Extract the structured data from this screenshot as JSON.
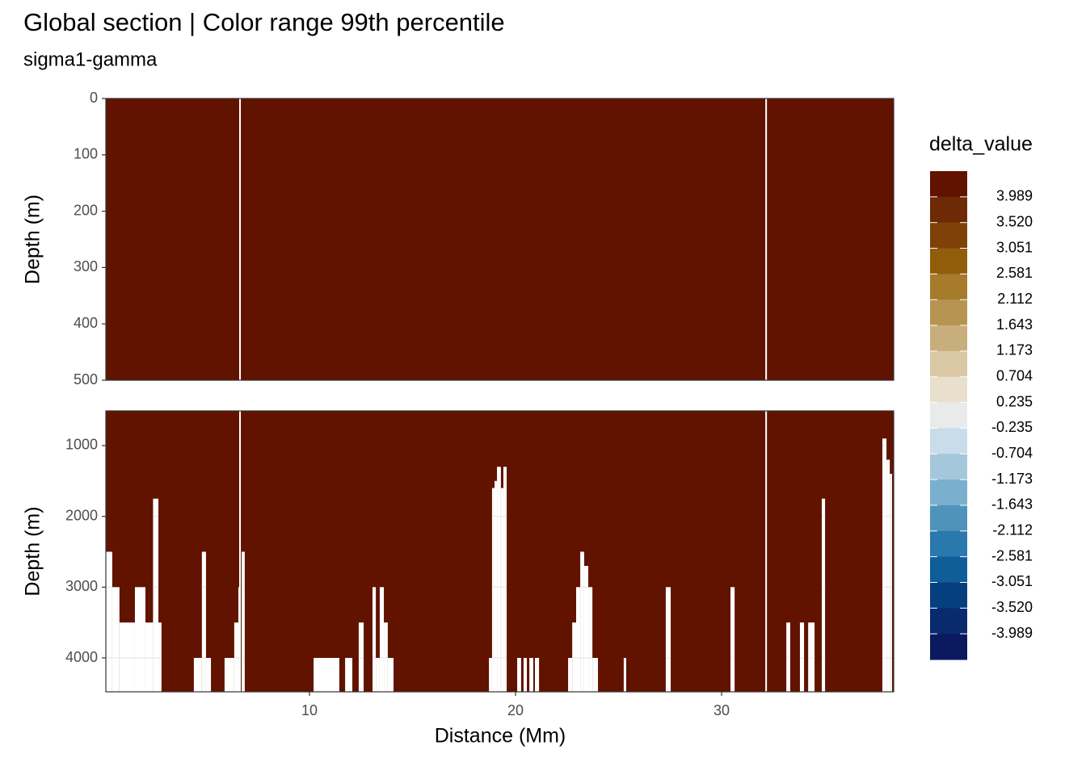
{
  "chart_data": {
    "type": "section",
    "title": "Global section | Color range 99th percentile",
    "subtitle": "sigma1-gamma",
    "x_label": "Distance (Mm)",
    "xlim": [
      0.12,
      38.35
    ],
    "xticks": [
      10,
      20,
      30
    ],
    "fill_color": "#611300",
    "grid": true,
    "missing_x": [
      [
        6.59,
        6.67
      ],
      [
        32.12,
        32.2
      ]
    ],
    "panels": [
      {
        "y_label": "Depth (m)",
        "ylim": [
          0,
          500
        ],
        "yticks": [
          0,
          100,
          200,
          300,
          400,
          500
        ],
        "bottom": []
      },
      {
        "y_label": "Depth (m)",
        "ylim": [
          510,
          4479
        ],
        "yticks": [
          1000,
          2000,
          3000,
          4000
        ],
        "bottom": [
          [
            0.12,
            0.43,
            2500
          ],
          [
            0.43,
            0.78,
            3000
          ],
          [
            0.78,
            1.53,
            3500
          ],
          [
            1.53,
            2.04,
            3000
          ],
          [
            2.04,
            2.41,
            3500
          ],
          [
            2.41,
            2.67,
            1750
          ],
          [
            2.67,
            2.82,
            3500
          ],
          [
            4.39,
            4.78,
            4000
          ],
          [
            4.78,
            4.98,
            2500
          ],
          [
            4.98,
            5.22,
            4000
          ],
          [
            5.88,
            6.35,
            4000
          ],
          [
            6.35,
            6.55,
            3500
          ],
          [
            6.55,
            6.63,
            3000
          ],
          [
            6.71,
            6.86,
            2500
          ],
          [
            10.2,
            11.45,
            4000
          ],
          [
            11.73,
            12.08,
            4000
          ],
          [
            12.39,
            12.63,
            3500
          ],
          [
            13.06,
            13.22,
            3000
          ],
          [
            13.22,
            13.41,
            4000
          ],
          [
            13.41,
            13.61,
            3000
          ],
          [
            13.61,
            13.8,
            3500
          ],
          [
            13.8,
            14.08,
            4000
          ],
          [
            18.71,
            18.86,
            4000
          ],
          [
            18.86,
            18.98,
            1600
          ],
          [
            18.98,
            19.1,
            1500
          ],
          [
            19.1,
            19.29,
            1300
          ],
          [
            19.29,
            19.41,
            1600
          ],
          [
            19.41,
            19.57,
            1300
          ],
          [
            20.08,
            20.27,
            4000
          ],
          [
            20.39,
            20.55,
            4000
          ],
          [
            20.67,
            20.86,
            4000
          ],
          [
            20.94,
            21.14,
            4000
          ],
          [
            22.55,
            22.75,
            4000
          ],
          [
            22.75,
            22.94,
            3500
          ],
          [
            22.94,
            23.14,
            3000
          ],
          [
            23.14,
            23.33,
            2500
          ],
          [
            23.33,
            23.53,
            2700
          ],
          [
            23.53,
            23.73,
            3000
          ],
          [
            23.73,
            24.0,
            4000
          ],
          [
            25.25,
            25.37,
            4000
          ],
          [
            27.29,
            27.53,
            3000
          ],
          [
            30.43,
            30.63,
            3000
          ],
          [
            33.14,
            33.33,
            3500
          ],
          [
            33.8,
            34.0,
            3500
          ],
          [
            34.2,
            34.51,
            3500
          ],
          [
            34.86,
            35.02,
            1750
          ],
          [
            37.8,
            38.0,
            900
          ],
          [
            38.0,
            38.16,
            1200
          ],
          [
            38.16,
            38.27,
            1400
          ]
        ]
      }
    ],
    "legend": {
      "title": "delta_value",
      "colors": [
        "#611300",
        "#6e2a05",
        "#7f4107",
        "#925d0a",
        "#a67b2b",
        "#b89453",
        "#c8ae7c",
        "#dac8a4",
        "#e8dfcc",
        "#e9ebea",
        "#c9dcea",
        "#a5c7dc",
        "#7ab0cd",
        "#4f93bb",
        "#2a79ad",
        "#0f5d99",
        "#063f80",
        "#0a2a6e",
        "#0b1a5e"
      ],
      "breaks": [
        3.989,
        {
          "value": 3.52,
          "label": "3.520"
        },
        3.051,
        2.581,
        2.112,
        1.643,
        1.173,
        0.704,
        0.235,
        -0.235,
        -0.704,
        -1.173,
        -1.643,
        -2.112,
        -2.581,
        -3.051,
        {
          "value": -3.52,
          "label": "-3.520"
        },
        -3.989
      ]
    }
  }
}
